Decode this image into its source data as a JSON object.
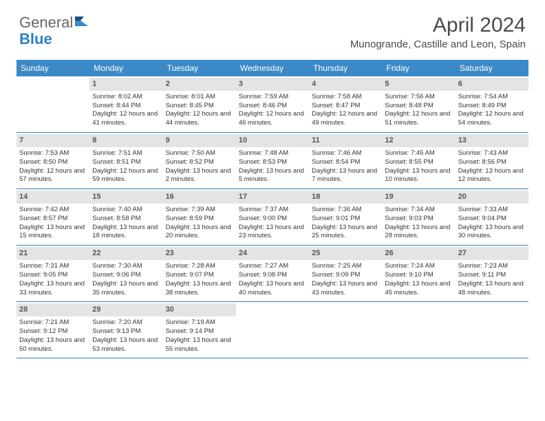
{
  "logo": {
    "text1": "General",
    "text2": "Blue"
  },
  "title": "April 2024",
  "location": "Munogrande, Castille and Leon, Spain",
  "colors": {
    "header_bg": "#3b89c7",
    "header_text": "#ffffff",
    "daynum_bg": "#e4e4e4",
    "daynum_text": "#555555",
    "border": "#2d7fc1",
    "body_text": "#333333",
    "logo_gray": "#666666",
    "logo_blue": "#2d7fc1"
  },
  "typography": {
    "title_fontsize": 30,
    "location_fontsize": 15,
    "dow_fontsize": 12,
    "daynum_fontsize": 11,
    "body_fontsize": 9.5
  },
  "days_of_week": [
    "Sunday",
    "Monday",
    "Tuesday",
    "Wednesday",
    "Thursday",
    "Friday",
    "Saturday"
  ],
  "weeks": [
    [
      {
        "n": "",
        "sr": "",
        "ss": "",
        "dl": ""
      },
      {
        "n": "1",
        "sr": "Sunrise: 8:02 AM",
        "ss": "Sunset: 8:44 PM",
        "dl": "Daylight: 12 hours and 41 minutes."
      },
      {
        "n": "2",
        "sr": "Sunrise: 8:01 AM",
        "ss": "Sunset: 8:45 PM",
        "dl": "Daylight: 12 hours and 44 minutes."
      },
      {
        "n": "3",
        "sr": "Sunrise: 7:59 AM",
        "ss": "Sunset: 8:46 PM",
        "dl": "Daylight: 12 hours and 46 minutes."
      },
      {
        "n": "4",
        "sr": "Sunrise: 7:58 AM",
        "ss": "Sunset: 8:47 PM",
        "dl": "Daylight: 12 hours and 49 minutes."
      },
      {
        "n": "5",
        "sr": "Sunrise: 7:56 AM",
        "ss": "Sunset: 8:48 PM",
        "dl": "Daylight: 12 hours and 51 minutes."
      },
      {
        "n": "6",
        "sr": "Sunrise: 7:54 AM",
        "ss": "Sunset: 8:49 PM",
        "dl": "Daylight: 12 hours and 54 minutes."
      }
    ],
    [
      {
        "n": "7",
        "sr": "Sunrise: 7:53 AM",
        "ss": "Sunset: 8:50 PM",
        "dl": "Daylight: 12 hours and 57 minutes."
      },
      {
        "n": "8",
        "sr": "Sunrise: 7:51 AM",
        "ss": "Sunset: 8:51 PM",
        "dl": "Daylight: 12 hours and 59 minutes."
      },
      {
        "n": "9",
        "sr": "Sunrise: 7:50 AM",
        "ss": "Sunset: 8:52 PM",
        "dl": "Daylight: 13 hours and 2 minutes."
      },
      {
        "n": "10",
        "sr": "Sunrise: 7:48 AM",
        "ss": "Sunset: 8:53 PM",
        "dl": "Daylight: 13 hours and 5 minutes."
      },
      {
        "n": "11",
        "sr": "Sunrise: 7:46 AM",
        "ss": "Sunset: 8:54 PM",
        "dl": "Daylight: 13 hours and 7 minutes."
      },
      {
        "n": "12",
        "sr": "Sunrise: 7:45 AM",
        "ss": "Sunset: 8:55 PM",
        "dl": "Daylight: 13 hours and 10 minutes."
      },
      {
        "n": "13",
        "sr": "Sunrise: 7:43 AM",
        "ss": "Sunset: 8:56 PM",
        "dl": "Daylight: 13 hours and 12 minutes."
      }
    ],
    [
      {
        "n": "14",
        "sr": "Sunrise: 7:42 AM",
        "ss": "Sunset: 8:57 PM",
        "dl": "Daylight: 13 hours and 15 minutes."
      },
      {
        "n": "15",
        "sr": "Sunrise: 7:40 AM",
        "ss": "Sunset: 8:58 PM",
        "dl": "Daylight: 13 hours and 18 minutes."
      },
      {
        "n": "16",
        "sr": "Sunrise: 7:39 AM",
        "ss": "Sunset: 8:59 PM",
        "dl": "Daylight: 13 hours and 20 minutes."
      },
      {
        "n": "17",
        "sr": "Sunrise: 7:37 AM",
        "ss": "Sunset: 9:00 PM",
        "dl": "Daylight: 13 hours and 23 minutes."
      },
      {
        "n": "18",
        "sr": "Sunrise: 7:36 AM",
        "ss": "Sunset: 9:01 PM",
        "dl": "Daylight: 13 hours and 25 minutes."
      },
      {
        "n": "19",
        "sr": "Sunrise: 7:34 AM",
        "ss": "Sunset: 9:03 PM",
        "dl": "Daylight: 13 hours and 28 minutes."
      },
      {
        "n": "20",
        "sr": "Sunrise: 7:33 AM",
        "ss": "Sunset: 9:04 PM",
        "dl": "Daylight: 13 hours and 30 minutes."
      }
    ],
    [
      {
        "n": "21",
        "sr": "Sunrise: 7:31 AM",
        "ss": "Sunset: 9:05 PM",
        "dl": "Daylight: 13 hours and 33 minutes."
      },
      {
        "n": "22",
        "sr": "Sunrise: 7:30 AM",
        "ss": "Sunset: 9:06 PM",
        "dl": "Daylight: 13 hours and 35 minutes."
      },
      {
        "n": "23",
        "sr": "Sunrise: 7:28 AM",
        "ss": "Sunset: 9:07 PM",
        "dl": "Daylight: 13 hours and 38 minutes."
      },
      {
        "n": "24",
        "sr": "Sunrise: 7:27 AM",
        "ss": "Sunset: 9:08 PM",
        "dl": "Daylight: 13 hours and 40 minutes."
      },
      {
        "n": "25",
        "sr": "Sunrise: 7:25 AM",
        "ss": "Sunset: 9:09 PM",
        "dl": "Daylight: 13 hours and 43 minutes."
      },
      {
        "n": "26",
        "sr": "Sunrise: 7:24 AM",
        "ss": "Sunset: 9:10 PM",
        "dl": "Daylight: 13 hours and 45 minutes."
      },
      {
        "n": "27",
        "sr": "Sunrise: 7:23 AM",
        "ss": "Sunset: 9:11 PM",
        "dl": "Daylight: 13 hours and 48 minutes."
      }
    ],
    [
      {
        "n": "28",
        "sr": "Sunrise: 7:21 AM",
        "ss": "Sunset: 9:12 PM",
        "dl": "Daylight: 13 hours and 50 minutes."
      },
      {
        "n": "29",
        "sr": "Sunrise: 7:20 AM",
        "ss": "Sunset: 9:13 PM",
        "dl": "Daylight: 13 hours and 53 minutes."
      },
      {
        "n": "30",
        "sr": "Sunrise: 7:19 AM",
        "ss": "Sunset: 9:14 PM",
        "dl": "Daylight: 13 hours and 55 minutes."
      },
      {
        "n": "",
        "sr": "",
        "ss": "",
        "dl": ""
      },
      {
        "n": "",
        "sr": "",
        "ss": "",
        "dl": ""
      },
      {
        "n": "",
        "sr": "",
        "ss": "",
        "dl": ""
      },
      {
        "n": "",
        "sr": "",
        "ss": "",
        "dl": ""
      }
    ]
  ]
}
